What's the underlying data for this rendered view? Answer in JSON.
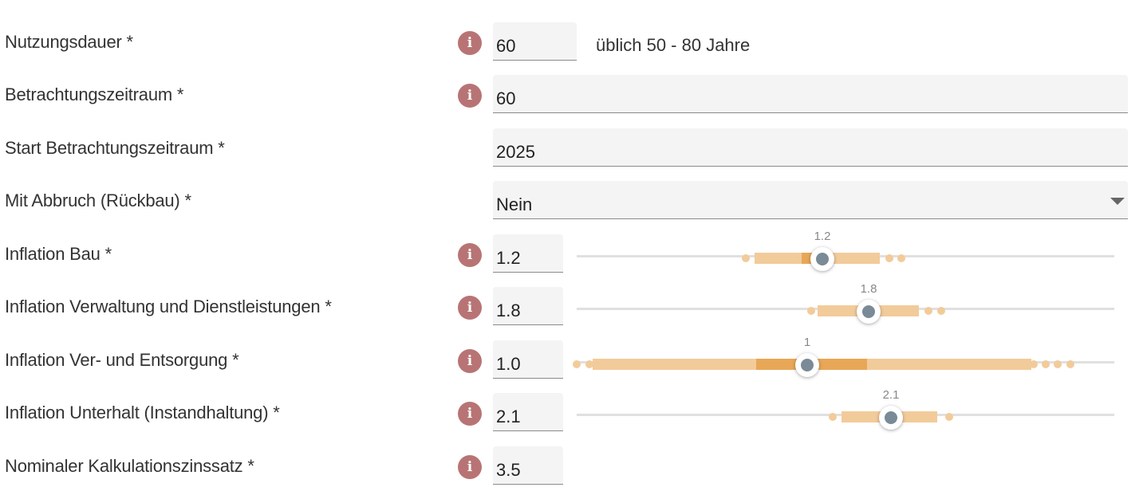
{
  "fields": [
    {
      "label": "Nutzungsdauer *",
      "value": "60",
      "info": true,
      "hint": "üblich 50 - 80 Jahre"
    },
    {
      "label": "Betrachtungszeitraum *",
      "value": "60",
      "info": true
    },
    {
      "label": "Start Betrachtungszeitraum *",
      "value": "2025",
      "info": false
    },
    {
      "label": "Mit Abbruch (Rückbau) *",
      "value": "Nein",
      "info": false,
      "select": true
    },
    {
      "label": "Inflation Bau *",
      "value": "1.2",
      "info": true,
      "slider_label": "1.2"
    },
    {
      "label": "Inflation Verwaltung und Dienstleistungen *",
      "value": "1.8",
      "info": true,
      "slider_label": "1.8"
    },
    {
      "label": "Inflation Ver- und Entsorgung *",
      "value": "1.0",
      "info": true,
      "slider_label": "1"
    },
    {
      "label": "Inflation Unterhalt (Instandhaltung) *",
      "value": "2.1",
      "info": true,
      "slider_label": "2.1"
    },
    {
      "label": "Nominaler Kalkulationszinssatz *",
      "value": "3.5",
      "info": true
    }
  ],
  "info_icon_glyph": "i",
  "colors": {
    "info_badge": "#b87474",
    "range_light": "#f2cb9a",
    "range_dark": "#e8a757",
    "thumb_inner": "#7a8a96"
  }
}
